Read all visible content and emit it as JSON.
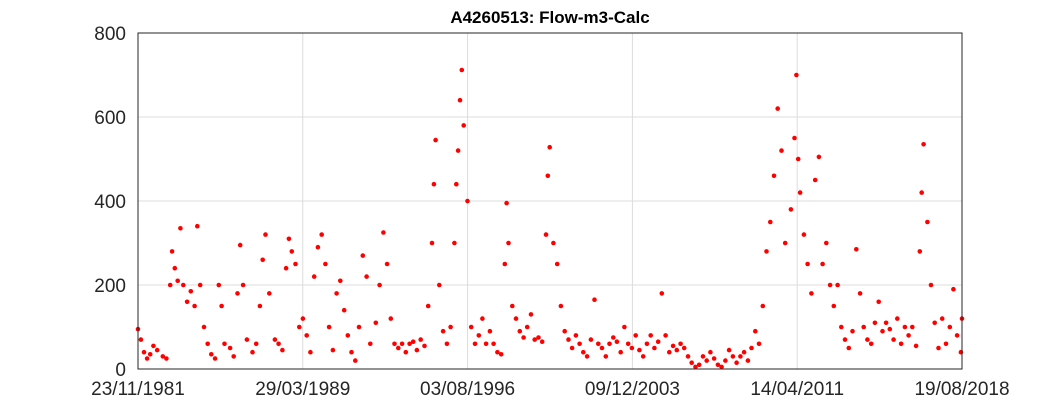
{
  "chart_data": {
    "type": "scatter",
    "title": "A4260513: Flow-m3-Calc",
    "xlabel": "",
    "ylabel": "",
    "x_start": "1981-11-23",
    "x_end": "2018-08-19",
    "ylim": [
      0,
      800
    ],
    "yticks": [
      0,
      200,
      400,
      600,
      800
    ],
    "xticks": [
      "1981-11-23",
      "1989-03-29",
      "1996-08-03",
      "2003-12-09",
      "2011-04-14",
      "2018-08-19"
    ],
    "xtick_labels": [
      "23/11/1981",
      "29/03/1989",
      "03/08/1996",
      "09/12/2003",
      "14/04/2011",
      "19/08/2018"
    ],
    "grid": true,
    "marker_color": "#ff0000",
    "series": [
      {
        "values": [
          [
            "1981-11-23",
            95
          ],
          [
            "1982-01-10",
            70
          ],
          [
            "1982-03-01",
            40
          ],
          [
            "1982-04-20",
            25
          ],
          [
            "1982-06-10",
            35
          ],
          [
            "1982-08-01",
            55
          ],
          [
            "1982-10-01",
            45
          ],
          [
            "1983-01-01",
            30
          ],
          [
            "1983-03-01",
            25
          ],
          [
            "1983-05-01",
            200
          ],
          [
            "1983-06-01",
            280
          ],
          [
            "1983-07-15",
            240
          ],
          [
            "1983-09-01",
            210
          ],
          [
            "1983-10-15",
            335
          ],
          [
            "1983-12-01",
            200
          ],
          [
            "1984-02-01",
            160
          ],
          [
            "1984-04-01",
            185
          ],
          [
            "1984-06-01",
            150
          ],
          [
            "1984-07-15",
            340
          ],
          [
            "1984-09-01",
            200
          ],
          [
            "1984-11-01",
            100
          ],
          [
            "1985-01-01",
            60
          ],
          [
            "1985-03-01",
            35
          ],
          [
            "1985-05-01",
            25
          ],
          [
            "1985-07-01",
            200
          ],
          [
            "1985-08-15",
            150
          ],
          [
            "1985-10-01",
            60
          ],
          [
            "1986-01-01",
            50
          ],
          [
            "1986-03-01",
            30
          ],
          [
            "1986-05-01",
            180
          ],
          [
            "1986-06-15",
            295
          ],
          [
            "1986-08-01",
            200
          ],
          [
            "1986-10-01",
            70
          ],
          [
            "1987-01-01",
            40
          ],
          [
            "1987-03-01",
            60
          ],
          [
            "1987-05-01",
            150
          ],
          [
            "1987-06-15",
            260
          ],
          [
            "1987-08-01",
            320
          ],
          [
            "1987-10-01",
            180
          ],
          [
            "1988-01-01",
            70
          ],
          [
            "1988-03-01",
            60
          ],
          [
            "1988-05-01",
            45
          ],
          [
            "1988-07-01",
            240
          ],
          [
            "1988-08-15",
            310
          ],
          [
            "1988-10-01",
            280
          ],
          [
            "1988-12-01",
            250
          ],
          [
            "1989-02-01",
            100
          ],
          [
            "1989-04-01",
            120
          ],
          [
            "1989-06-01",
            80
          ],
          [
            "1989-08-01",
            40
          ],
          [
            "1989-10-01",
            220
          ],
          [
            "1989-12-01",
            290
          ],
          [
            "1990-02-01",
            320
          ],
          [
            "1990-04-01",
            250
          ],
          [
            "1990-06-01",
            100
          ],
          [
            "1990-08-01",
            45
          ],
          [
            "1990-10-01",
            180
          ],
          [
            "1990-12-01",
            210
          ],
          [
            "1991-02-01",
            140
          ],
          [
            "1991-04-01",
            80
          ],
          [
            "1991-06-01",
            40
          ],
          [
            "1991-08-01",
            20
          ],
          [
            "1991-10-01",
            100
          ],
          [
            "1991-12-01",
            270
          ],
          [
            "1992-02-01",
            220
          ],
          [
            "1992-04-01",
            60
          ],
          [
            "1992-07-01",
            110
          ],
          [
            "1992-09-01",
            200
          ],
          [
            "1992-11-01",
            325
          ],
          [
            "1993-01-01",
            250
          ],
          [
            "1993-03-01",
            120
          ],
          [
            "1993-05-01",
            60
          ],
          [
            "1993-07-01",
            50
          ],
          [
            "1993-09-01",
            60
          ],
          [
            "1993-11-01",
            40
          ],
          [
            "1994-01-01",
            60
          ],
          [
            "1994-03-01",
            65
          ],
          [
            "1994-05-01",
            45
          ],
          [
            "1994-07-01",
            70
          ],
          [
            "1994-09-01",
            55
          ],
          [
            "1994-11-01",
            150
          ],
          [
            "1995-01-01",
            300
          ],
          [
            "1995-02-01",
            440
          ],
          [
            "1995-03-01",
            545
          ],
          [
            "1995-05-01",
            200
          ],
          [
            "1995-07-01",
            90
          ],
          [
            "1995-09-01",
            60
          ],
          [
            "1995-11-01",
            100
          ],
          [
            "1996-01-01",
            300
          ],
          [
            "1996-02-01",
            440
          ],
          [
            "1996-03-01",
            520
          ],
          [
            "1996-04-01",
            640
          ],
          [
            "1996-05-01",
            712
          ],
          [
            "1996-06-01",
            580
          ],
          [
            "1996-08-01",
            400
          ],
          [
            "1996-10-01",
            100
          ],
          [
            "1996-12-01",
            60
          ],
          [
            "1997-02-01",
            80
          ],
          [
            "1997-04-01",
            120
          ],
          [
            "1997-06-01",
            60
          ],
          [
            "1997-08-01",
            90
          ],
          [
            "1997-10-01",
            60
          ],
          [
            "1997-12-01",
            40
          ],
          [
            "1998-02-01",
            35
          ],
          [
            "1998-04-01",
            250
          ],
          [
            "1998-05-01",
            395
          ],
          [
            "1998-06-01",
            300
          ],
          [
            "1998-08-01",
            150
          ],
          [
            "1998-10-01",
            120
          ],
          [
            "1998-12-01",
            90
          ],
          [
            "1999-02-01",
            75
          ],
          [
            "1999-04-01",
            100
          ],
          [
            "1999-06-01",
            130
          ],
          [
            "1999-08-01",
            70
          ],
          [
            "1999-10-01",
            75
          ],
          [
            "1999-12-01",
            65
          ],
          [
            "2000-02-01",
            320
          ],
          [
            "2000-03-01",
            460
          ],
          [
            "2000-04-01",
            528
          ],
          [
            "2000-06-01",
            300
          ],
          [
            "2000-08-01",
            250
          ],
          [
            "2000-10-01",
            150
          ],
          [
            "2000-12-01",
            90
          ],
          [
            "2001-02-01",
            70
          ],
          [
            "2001-04-01",
            50
          ],
          [
            "2001-06-01",
            80
          ],
          [
            "2001-08-01",
            60
          ],
          [
            "2001-10-01",
            40
          ],
          [
            "2001-12-01",
            30
          ],
          [
            "2002-02-01",
            70
          ],
          [
            "2002-04-01",
            165
          ],
          [
            "2002-06-01",
            60
          ],
          [
            "2002-08-01",
            50
          ],
          [
            "2002-10-01",
            30
          ],
          [
            "2002-12-01",
            60
          ],
          [
            "2003-02-01",
            75
          ],
          [
            "2003-04-01",
            65
          ],
          [
            "2003-06-01",
            40
          ],
          [
            "2003-08-01",
            100
          ],
          [
            "2003-10-01",
            60
          ],
          [
            "2003-12-01",
            50
          ],
          [
            "2004-02-01",
            80
          ],
          [
            "2004-04-01",
            45
          ],
          [
            "2004-06-01",
            30
          ],
          [
            "2004-08-01",
            60
          ],
          [
            "2004-10-01",
            80
          ],
          [
            "2004-12-01",
            50
          ],
          [
            "2005-02-01",
            65
          ],
          [
            "2005-04-01",
            180
          ],
          [
            "2005-06-01",
            80
          ],
          [
            "2005-08-01",
            40
          ],
          [
            "2005-10-01",
            55
          ],
          [
            "2005-12-01",
            45
          ],
          [
            "2006-02-01",
            60
          ],
          [
            "2006-04-01",
            50
          ],
          [
            "2006-06-01",
            30
          ],
          [
            "2006-08-01",
            15
          ],
          [
            "2006-10-01",
            5
          ],
          [
            "2006-12-01",
            10
          ],
          [
            "2007-02-01",
            30
          ],
          [
            "2007-04-01",
            20
          ],
          [
            "2007-06-01",
            40
          ],
          [
            "2007-08-01",
            25
          ],
          [
            "2007-10-01",
            10
          ],
          [
            "2007-12-01",
            5
          ],
          [
            "2008-02-01",
            20
          ],
          [
            "2008-04-01",
            45
          ],
          [
            "2008-06-01",
            30
          ],
          [
            "2008-08-01",
            15
          ],
          [
            "2008-10-01",
            30
          ],
          [
            "2008-12-01",
            40
          ],
          [
            "2009-02-01",
            20
          ],
          [
            "2009-04-01",
            50
          ],
          [
            "2009-06-01",
            90
          ],
          [
            "2009-08-01",
            60
          ],
          [
            "2009-10-01",
            150
          ],
          [
            "2009-12-01",
            280
          ],
          [
            "2010-02-01",
            350
          ],
          [
            "2010-04-01",
            460
          ],
          [
            "2010-06-01",
            620
          ],
          [
            "2010-08-01",
            520
          ],
          [
            "2010-10-01",
            300
          ],
          [
            "2011-01-01",
            380
          ],
          [
            "2011-03-01",
            550
          ],
          [
            "2011-04-01",
            700
          ],
          [
            "2011-05-01",
            500
          ],
          [
            "2011-06-01",
            420
          ],
          [
            "2011-08-01",
            320
          ],
          [
            "2011-10-01",
            250
          ],
          [
            "2011-12-01",
            180
          ],
          [
            "2012-02-01",
            450
          ],
          [
            "2012-04-01",
            505
          ],
          [
            "2012-06-01",
            250
          ],
          [
            "2012-08-01",
            300
          ],
          [
            "2012-10-01",
            200
          ],
          [
            "2012-12-01",
            150
          ],
          [
            "2013-02-01",
            200
          ],
          [
            "2013-04-01",
            100
          ],
          [
            "2013-06-01",
            70
          ],
          [
            "2013-08-01",
            50
          ],
          [
            "2013-10-01",
            90
          ],
          [
            "2013-12-01",
            285
          ],
          [
            "2014-02-01",
            180
          ],
          [
            "2014-04-01",
            100
          ],
          [
            "2014-06-01",
            70
          ],
          [
            "2014-08-01",
            60
          ],
          [
            "2014-10-01",
            110
          ],
          [
            "2014-12-01",
            160
          ],
          [
            "2015-02-01",
            90
          ],
          [
            "2015-04-01",
            110
          ],
          [
            "2015-06-01",
            95
          ],
          [
            "2015-08-01",
            70
          ],
          [
            "2015-10-01",
            120
          ],
          [
            "2015-12-01",
            60
          ],
          [
            "2016-02-01",
            100
          ],
          [
            "2016-04-01",
            80
          ],
          [
            "2016-06-01",
            100
          ],
          [
            "2016-08-01",
            55
          ],
          [
            "2016-10-01",
            280
          ],
          [
            "2016-11-01",
            420
          ],
          [
            "2016-12-01",
            535
          ],
          [
            "2017-02-01",
            350
          ],
          [
            "2017-04-01",
            200
          ],
          [
            "2017-06-01",
            110
          ],
          [
            "2017-08-01",
            50
          ],
          [
            "2017-10-01",
            120
          ],
          [
            "2017-12-01",
            60
          ],
          [
            "2018-02-01",
            100
          ],
          [
            "2018-04-01",
            190
          ],
          [
            "2018-06-01",
            80
          ],
          [
            "2018-08-01",
            40
          ],
          [
            "2018-08-19",
            120
          ]
        ]
      }
    ]
  }
}
